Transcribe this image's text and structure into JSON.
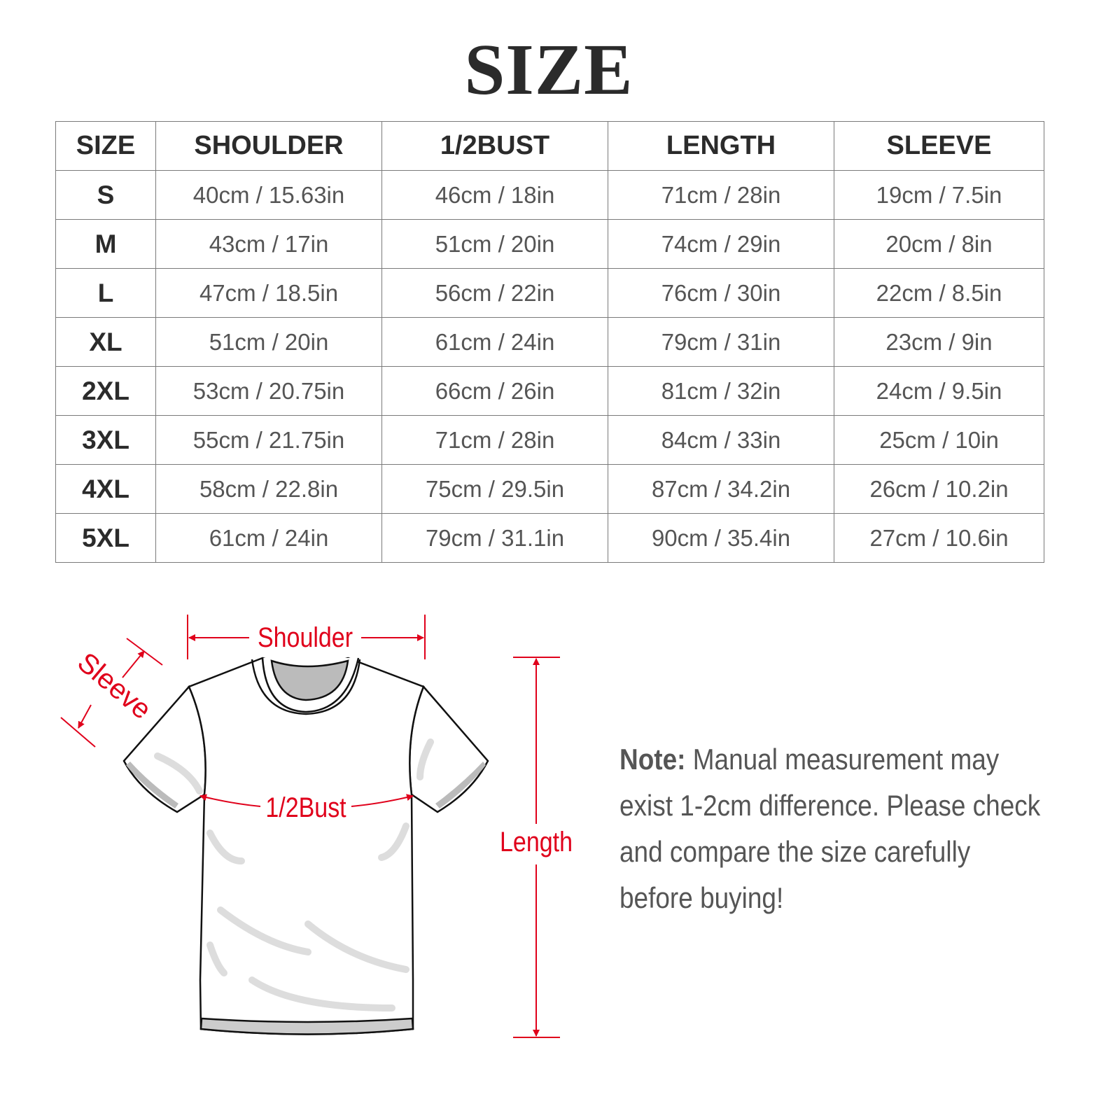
{
  "title": "SIZE",
  "table": {
    "headers": [
      "SIZE",
      "SHOULDER",
      "1/2BUST",
      "LENGTH",
      "SLEEVE"
    ],
    "rows": [
      [
        "S",
        "40cm / 15.63in",
        "46cm / 18in",
        "71cm / 28in",
        "19cm / 7.5in"
      ],
      [
        "M",
        "43cm / 17in",
        "51cm / 20in",
        "74cm / 29in",
        "20cm / 8in"
      ],
      [
        "L",
        "47cm / 18.5in",
        "56cm / 22in",
        "76cm / 30in",
        "22cm / 8.5in"
      ],
      [
        "XL",
        "51cm / 20in",
        "61cm / 24in",
        "79cm / 31in",
        "23cm / 9in"
      ],
      [
        "2XL",
        "53cm / 20.75in",
        "66cm / 26in",
        "81cm / 32in",
        "24cm / 9.5in"
      ],
      [
        "3XL",
        "55cm / 21.75in",
        "71cm / 28in",
        "84cm / 33in",
        "25cm / 10in"
      ],
      [
        "4XL",
        "58cm / 22.8in",
        "75cm / 29.5in",
        "87cm / 34.2in",
        "26cm / 10.2in"
      ],
      [
        "5XL",
        "61cm / 24in",
        "79cm / 31.1in",
        "90cm / 35.4in",
        "27cm / 10.6in"
      ]
    ]
  },
  "diagram": {
    "shoulder": "Shoulder",
    "sleeve": "Sleeve",
    "bust": "1/2Bust",
    "length": "Length",
    "accent_color": "#e0001b"
  },
  "note": {
    "label": "Note:",
    "text": "Manual measurement may exist 1-2cm difference. Please check and compare the size carefully before buying!"
  }
}
